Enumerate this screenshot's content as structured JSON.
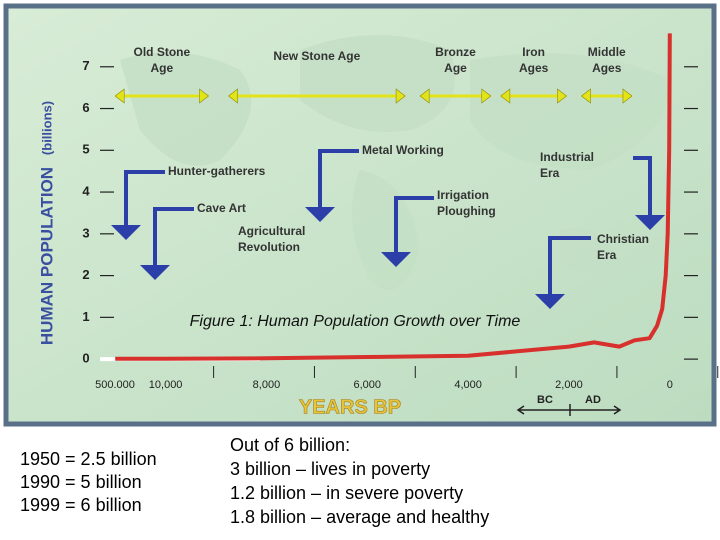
{
  "chart_data": {
    "type": "line",
    "title": "Figure 1: Human Population Growth over Time",
    "y_label": "HUMAN POPULATION",
    "y_unit": "(billions)",
    "x_label": "YEARS BP",
    "x_break_label": "500.000",
    "era_markers": [
      "BC",
      "AD"
    ],
    "xlim": [
      11500,
      -600
    ],
    "ylim": [
      -0.5,
      8
    ],
    "xticks": [
      {
        "value": 10000,
        "label": "10,000"
      },
      {
        "value": 8000,
        "label": "8,000"
      },
      {
        "value": 6000,
        "label": "6,000"
      },
      {
        "value": 4000,
        "label": "4,000"
      },
      {
        "value": 2000,
        "label": "2,000"
      },
      0
    ],
    "yticks": [
      0,
      1,
      2,
      3,
      4,
      5,
      6,
      7
    ],
    "series": [
      {
        "name": "Human population",
        "color": "#d8302c",
        "x": [
          11000,
          10000,
          8000,
          6000,
          4000,
          2000,
          1500,
          1000,
          700,
          400,
          250,
          150,
          80,
          40,
          10,
          0
        ],
        "values": [
          0.01,
          0.01,
          0.02,
          0.05,
          0.08,
          0.3,
          0.4,
          0.3,
          0.45,
          0.5,
          0.8,
          1.2,
          2.0,
          3.0,
          5.0,
          7.8
        ]
      }
    ],
    "ages": [
      {
        "label": [
          "Old Stone",
          "Age"
        ],
        "start": 11000,
        "end": 9150
      },
      {
        "label": [
          "New Stone Age"
        ],
        "start": 8750,
        "end": 5250
      },
      {
        "label": [
          "Bronze",
          "Age"
        ],
        "start": 4950,
        "end": 3550
      },
      {
        "label": [
          "Iron",
          "Ages"
        ],
        "start": 3350,
        "end": 2050
      },
      {
        "label": [
          "Middle",
          "Ages"
        ],
        "start": 1750,
        "end": 750
      }
    ],
    "events": [
      [
        "Hunter-gatherers"
      ],
      [
        "Cave Art"
      ],
      [
        "Agricultural",
        "Revolution"
      ],
      [
        "Metal Working"
      ],
      [
        "Irrigation",
        "Ploughing"
      ],
      [
        "Industrial",
        "Era"
      ],
      [
        "Christian",
        "Era"
      ]
    ]
  },
  "notes_left": [
    "1950 = 2.5 billion",
    "1990 =  5 billion",
    "1999 = 6 billion"
  ],
  "notes_right": [
    "Out of 6 billion:",
    "3 billion – lives in poverty",
    "1.2 billion – in severe poverty",
    "1.8 billion – average and healthy"
  ]
}
